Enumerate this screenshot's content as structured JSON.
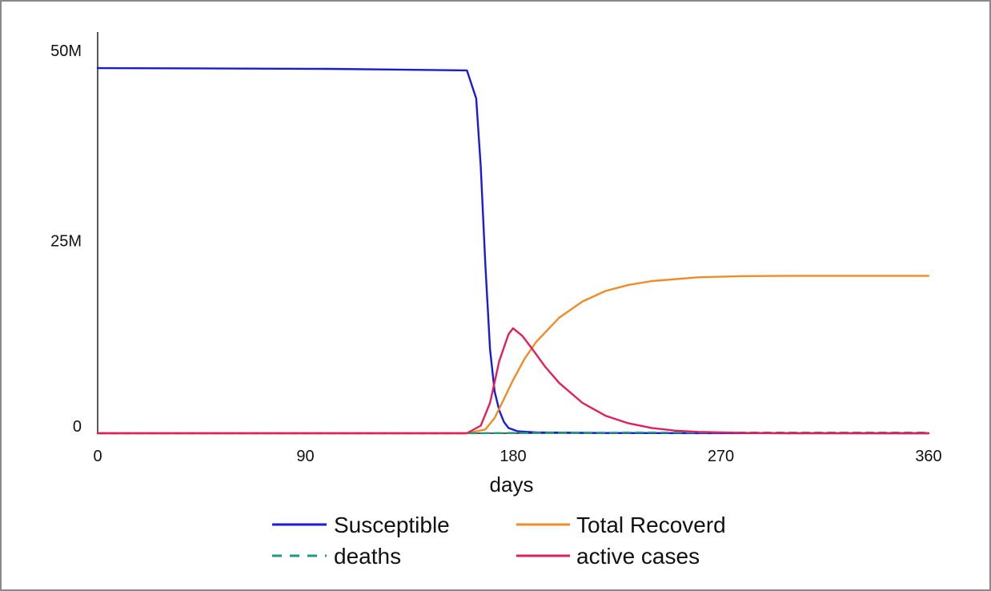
{
  "chart_data": {
    "type": "line",
    "title": "",
    "xlabel": "days",
    "ylabel": "",
    "xlim": [
      0,
      360
    ],
    "ylim": [
      0,
      50000000
    ],
    "x_ticks": [
      0,
      90,
      180,
      270,
      360
    ],
    "x_tick_labels": [
      "0",
      "90",
      "180",
      "270",
      "360"
    ],
    "y_ticks": [
      0,
      25000000,
      50000000
    ],
    "y_tick_labels": [
      "0",
      "25M",
      "50M"
    ],
    "grid": false,
    "legend_position": "bottom",
    "series": [
      {
        "name": "Susceptible",
        "color": "#1a1adb",
        "style": "solid",
        "x": [
          0,
          100,
          160,
          164,
          166,
          168,
          170,
          172,
          174,
          176,
          178,
          182,
          190,
          220,
          260,
          360
        ],
        "y": [
          48000000,
          47900000,
          47700000,
          44000000,
          35000000,
          22000000,
          11000000,
          5500000,
          3000000,
          1500000,
          700000,
          250000,
          100000,
          30000,
          10000,
          0
        ]
      },
      {
        "name": "Total Recoverd",
        "color": "#f08c28",
        "style": "solid",
        "x": [
          0,
          160,
          168,
          172,
          176,
          180,
          185,
          190,
          200,
          210,
          220,
          230,
          240,
          260,
          280,
          300,
          330,
          360
        ],
        "y": [
          0,
          0,
          500000,
          2000000,
          4500000,
          7000000,
          9800000,
          12000000,
          15200000,
          17300000,
          18700000,
          19500000,
          20000000,
          20500000,
          20650000,
          20700000,
          20700000,
          20700000
        ]
      },
      {
        "name": "deaths",
        "color": "#1f9a7a",
        "style": "dashed",
        "x": [
          0,
          160,
          180,
          200,
          240,
          360
        ],
        "y": [
          0,
          0,
          30000,
          60000,
          80000,
          80000
        ]
      },
      {
        "name": "active cases",
        "color": "#e0205a",
        "style": "solid",
        "x": [
          0,
          160,
          166,
          170,
          174,
          178,
          180,
          184,
          188,
          194,
          200,
          210,
          220,
          230,
          240,
          250,
          260,
          280,
          300,
          360
        ],
        "y": [
          0,
          0,
          1000000,
          4000000,
          9500000,
          13000000,
          13800000,
          12800000,
          11200000,
          8700000,
          6600000,
          4000000,
          2300000,
          1300000,
          700000,
          350000,
          180000,
          40000,
          0,
          0
        ]
      }
    ]
  }
}
